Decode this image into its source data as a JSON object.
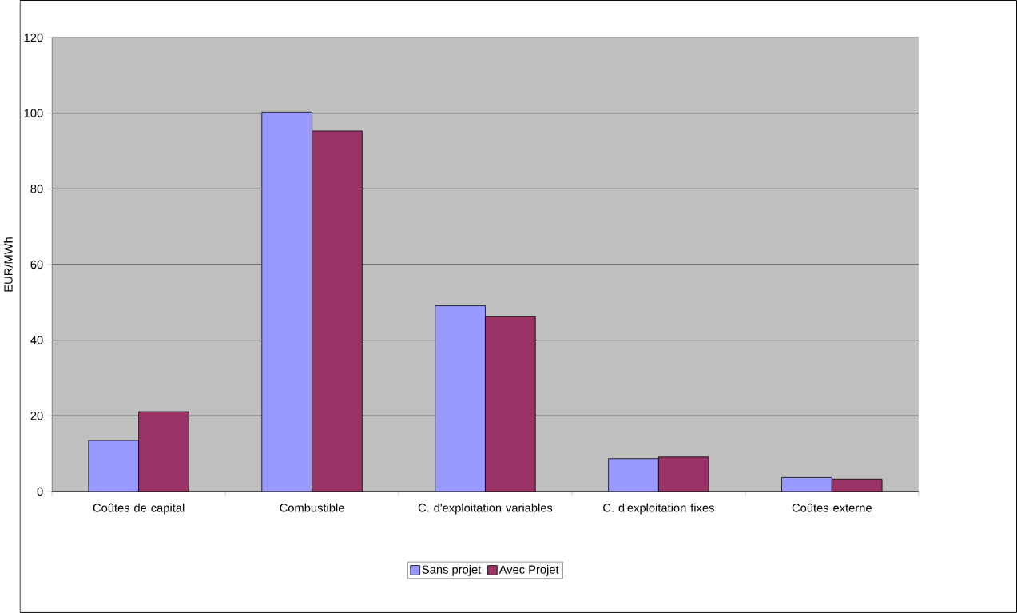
{
  "chart_data": {
    "type": "bar",
    "ylabel": "EUR/MWh",
    "categories": [
      "Coûtes de capital",
      "Combustible",
      "C. d'exploitation variables",
      "C. d'exploitation fixes",
      "Coûtes externe"
    ],
    "series": [
      {
        "name": "Sans projet",
        "color": "#9999ff",
        "values": [
          13.5,
          100.3,
          49.1,
          8.7,
          3.7
        ]
      },
      {
        "name": "Avec Projet",
        "color": "#993366",
        "values": [
          21.1,
          95.3,
          46.2,
          9.1,
          3.3
        ]
      }
    ],
    "ylim": [
      0,
      120
    ],
    "yticks": [
      0,
      20,
      40,
      60,
      80,
      100,
      120
    ],
    "grid": "y",
    "legend": "bottom"
  }
}
